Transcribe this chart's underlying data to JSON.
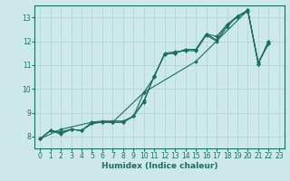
{
  "title": "",
  "xlabel": "Humidex (Indice chaleur)",
  "ylabel": "",
  "bg_color": "#cce8e8",
  "grid_color": "#b8d8d8",
  "line_color": "#1a6e60",
  "xlim": [
    -0.5,
    23.5
  ],
  "ylim": [
    7.5,
    13.5
  ],
  "xticks": [
    0,
    1,
    2,
    3,
    4,
    5,
    6,
    7,
    8,
    9,
    10,
    11,
    12,
    13,
    14,
    15,
    16,
    17,
    18,
    19,
    20,
    21,
    22,
    23
  ],
  "yticks": [
    8,
    9,
    10,
    11,
    12,
    13
  ],
  "series": [
    [
      0,
      7.9,
      1,
      8.25,
      2,
      8.2,
      3,
      8.3,
      4,
      8.25,
      5,
      8.6,
      6,
      8.65,
      7,
      8.65,
      8,
      8.65,
      9,
      8.85,
      10,
      9.85,
      11,
      10.5,
      12,
      11.5,
      13,
      11.55,
      14,
      11.6,
      15,
      11.6,
      16,
      12.25,
      17,
      12.0,
      18,
      12.6,
      19,
      13.05,
      20,
      13.25,
      21,
      11.1,
      22,
      11.9
    ],
    [
      0,
      7.9,
      1,
      8.25,
      2,
      8.15,
      3,
      8.3,
      4,
      8.25,
      5,
      8.55,
      6,
      8.6,
      7,
      8.6,
      8,
      8.6,
      9,
      8.85,
      10,
      9.5,
      11,
      10.55,
      12,
      11.45,
      13,
      11.5,
      14,
      11.65,
      15,
      11.65,
      16,
      12.3,
      17,
      12.2,
      18,
      12.7,
      19,
      13.05,
      20,
      13.3,
      21,
      11.05,
      22,
      12.0
    ],
    [
      0,
      7.9,
      1,
      8.25,
      2,
      8.1,
      3,
      8.3,
      4,
      8.25,
      5,
      8.55,
      6,
      8.6,
      7,
      8.6,
      8,
      8.6,
      9,
      8.85,
      10,
      9.45,
      11,
      10.55,
      12,
      11.45,
      13,
      11.5,
      14,
      11.65,
      15,
      11.65,
      16,
      12.3,
      17,
      12.05,
      18,
      12.7,
      19,
      13.0,
      20,
      13.3,
      21,
      11.05,
      22,
      12.0
    ],
    [
      0,
      7.9,
      2,
      8.3,
      5,
      8.6,
      7,
      8.6,
      10,
      9.85,
      15,
      11.15,
      20,
      13.3,
      21,
      11.1,
      22,
      11.9
    ]
  ],
  "tick_fontsize": 5.5,
  "xlabel_fontsize": 6.5,
  "lw": 0.8,
  "ms": 2.0
}
